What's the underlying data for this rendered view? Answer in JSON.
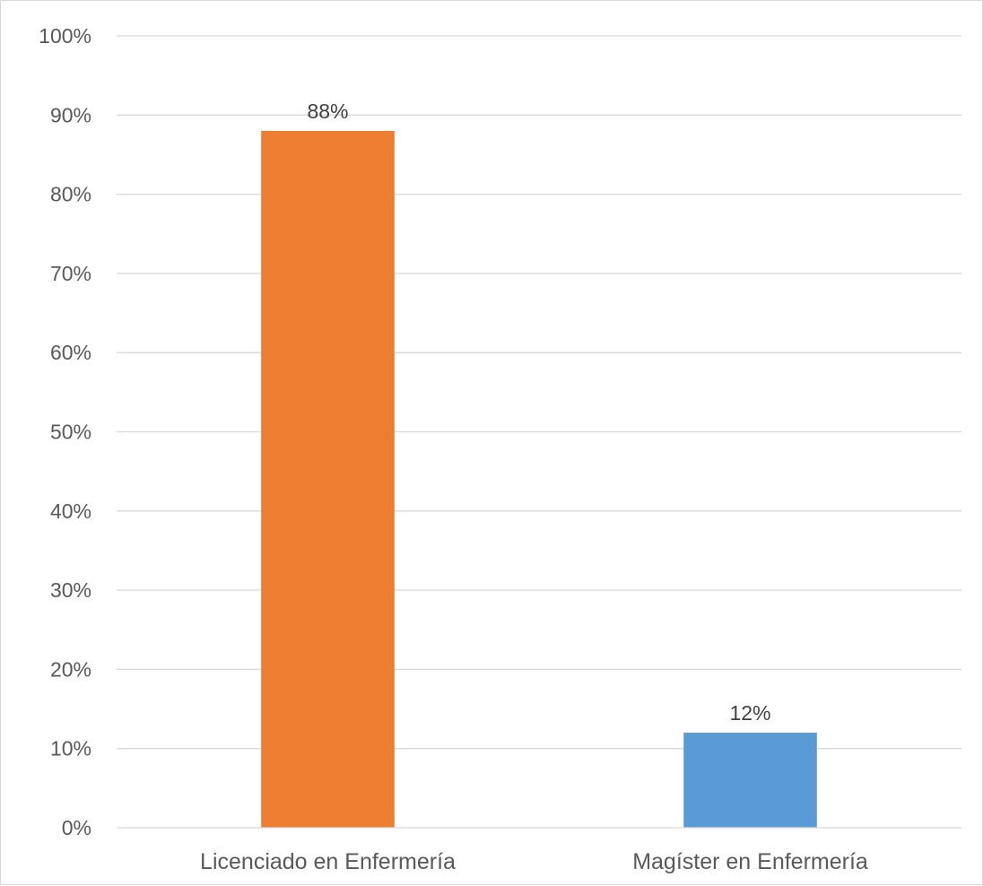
{
  "chart_data": {
    "type": "bar",
    "title": "",
    "xlabel": "",
    "ylabel": "",
    "categories": [
      "Licenciado en Enfermería",
      "Magíster en Enfermería"
    ],
    "values": [
      88,
      12
    ],
    "data_labels": [
      "88%",
      "12%"
    ],
    "colors": [
      "#ED7D31",
      "#5B9BD5"
    ],
    "ylim": [
      0,
      100
    ],
    "y_ticks": [
      0,
      10,
      20,
      30,
      40,
      50,
      60,
      70,
      80,
      90,
      100
    ],
    "y_tick_labels": [
      "0%",
      "10%",
      "20%",
      "30%",
      "40%",
      "50%",
      "60%",
      "70%",
      "80%",
      "90%",
      "100%"
    ],
    "grid": true,
    "legend": "none"
  }
}
